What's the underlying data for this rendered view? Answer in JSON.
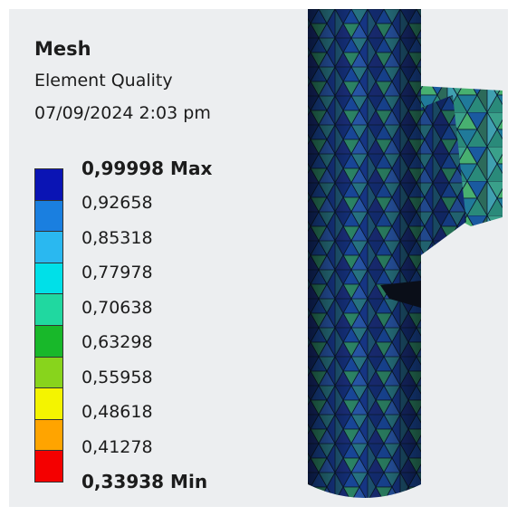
{
  "header": {
    "title": "Mesh",
    "subtitle": "Element Quality",
    "date": "07/09/2024 2:03 pm"
  },
  "legend": {
    "labels": [
      "0,99998 Max",
      "0,92658",
      "0,85318",
      "0,77978",
      "0,70638",
      "0,63298",
      "0,55958",
      "0,48618",
      "0,41278",
      "0,33938 Min"
    ],
    "colors": [
      "#0a14b4",
      "#1a7fe0",
      "#2ab8f0",
      "#00e0e8",
      "#20d8a0",
      "#18b82a",
      "#88d41c",
      "#f4f400",
      "#ffa400",
      "#f40000"
    ]
  }
}
